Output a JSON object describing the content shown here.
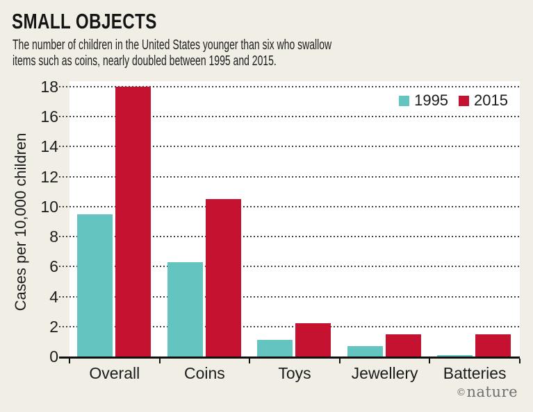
{
  "header": {
    "title": "SMALL OBJECTS",
    "subtitle": "The number of children in the United States younger than six who swallow\nitems such as coins, nearly doubled between 1995 and 2015."
  },
  "footer": {
    "credit_symbol": "©",
    "credit_name": "nature"
  },
  "colors": {
    "background": "#f1eee5",
    "plot_background": "#ffffff",
    "grid": "#3d3d3d",
    "axis": "#111111",
    "series_1995": "#64c5c0",
    "series_2015": "#c51230",
    "credit_gray": "#6f6f6f"
  },
  "chart_data": {
    "type": "bar",
    "title": "SMALL OBJECTS",
    "subtitle": "The number of children in the United States younger than six who swallow items such as coins, nearly doubled between 1995 and 2015.",
    "categories": [
      "Overall",
      "Coins",
      "Toys",
      "Jewellery",
      "Batteries"
    ],
    "series": [
      {
        "name": "1995",
        "color": "#64c5c0",
        "values": [
          9.5,
          6.3,
          1.1,
          0.7,
          0.1
        ]
      },
      {
        "name": "2015",
        "color": "#c51230",
        "values": [
          18,
          10.5,
          2.2,
          1.5,
          1.5
        ]
      }
    ],
    "xlabel": "",
    "ylabel": "Cases per 10,000 children",
    "ylim": [
      0,
      18
    ],
    "ytick_step": 2,
    "yticks": [
      0,
      2,
      4,
      6,
      8,
      10,
      12,
      14,
      16,
      18
    ],
    "grid": "horizontal-dotted",
    "legend_position": "top-right"
  }
}
